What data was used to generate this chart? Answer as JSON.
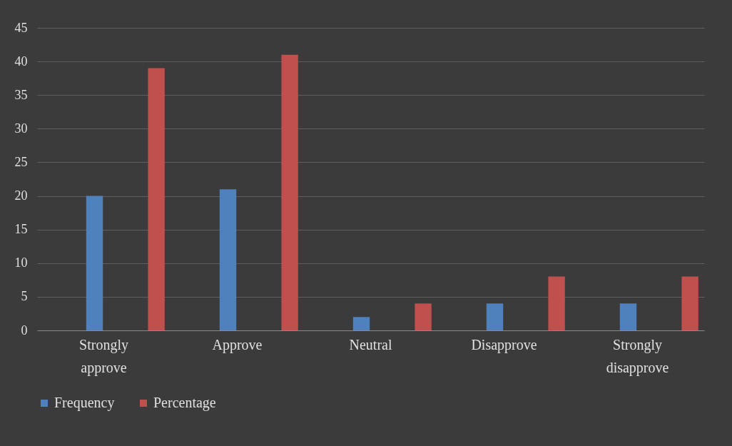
{
  "chart_data": {
    "type": "bar",
    "categories": [
      "Strongly approve",
      "Approve",
      "Neutral",
      "Disapprove",
      "Strongly disapprove"
    ],
    "series": [
      {
        "name": "Frequency",
        "color": "#4f81bd",
        "values": [
          20,
          21,
          2,
          4,
          4
        ]
      },
      {
        "name": "Percentage",
        "color": "#c0504d",
        "values": [
          39,
          41,
          4,
          8,
          8
        ]
      }
    ],
    "ylim": [
      0,
      45
    ],
    "yticks": [
      0,
      5,
      10,
      15,
      20,
      25,
      30,
      35,
      40,
      45
    ],
    "grid": "y",
    "legend": "bottom"
  }
}
